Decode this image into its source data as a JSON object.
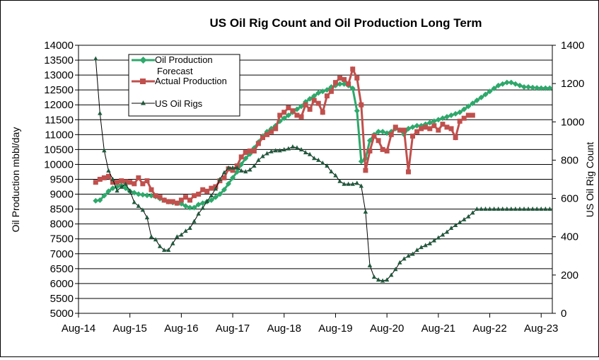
{
  "chart_data": {
    "type": "line",
    "title": "US Oil Rig Count and Oil Production Long Term",
    "ylabel": "Oil Production mbbl/day",
    "y2label": "US Oil Rig Count",
    "ylim": [
      5000,
      14000
    ],
    "y2lim": [
      0,
      1400
    ],
    "y_ticks": [
      "5000",
      "5500",
      "6000",
      "6500",
      "7000",
      "7500",
      "8000",
      "8500",
      "9000",
      "9500",
      "10000",
      "10500",
      "11000",
      "11500",
      "12000",
      "12500",
      "13000",
      "13500",
      "14000"
    ],
    "y2_ticks": [
      "0",
      "200",
      "400",
      "600",
      "800",
      "1000",
      "1200",
      "1400"
    ],
    "x_ticks": [
      "Aug-14",
      "Aug-15",
      "Aug-16",
      "Aug-17",
      "Aug-18",
      "Aug-19",
      "Aug-20",
      "Aug-21",
      "Aug-22",
      "Aug-23"
    ],
    "x_tick_values": [
      2014.583,
      2015.583,
      2016.583,
      2017.583,
      2018.583,
      2019.583,
      2020.583,
      2021.583,
      2022.583,
      2023.583
    ],
    "xlim": [
      2014.583,
      2023.8
    ],
    "grid": "horizontal",
    "legend_position": "top-left",
    "legend": [
      {
        "label": "Oil Production",
        "label2": "Forecast"
      },
      {
        "label": "Actual Production"
      },
      {
        "label": "US Oil Rigs"
      }
    ],
    "colors": {
      "forecast": "#2ea86b",
      "actual": "#c0504d",
      "rigs": "#000000",
      "rig_marker": "#1f5a3c"
    },
    "series": [
      {
        "name": "Oil Production Forecast",
        "axis": "left",
        "x": [
          2014.917,
          2015.0,
          2015.083,
          2015.167,
          2015.25,
          2015.333,
          2015.417,
          2015.5,
          2015.583,
          2015.667,
          2015.75,
          2015.833,
          2015.917,
          2016.0,
          2016.083,
          2016.167,
          2016.25,
          2016.333,
          2016.417,
          2016.5,
          2016.583,
          2016.667,
          2016.75,
          2016.833,
          2016.917,
          2017.0,
          2017.083,
          2017.167,
          2017.25,
          2017.333,
          2017.417,
          2017.5,
          2017.583,
          2017.667,
          2017.75,
          2017.833,
          2017.917,
          2018.0,
          2018.083,
          2018.167,
          2018.25,
          2018.333,
          2018.417,
          2018.5,
          2018.583,
          2018.667,
          2018.75,
          2018.833,
          2018.917,
          2019.0,
          2019.083,
          2019.167,
          2019.25,
          2019.333,
          2019.417,
          2019.5,
          2019.583,
          2019.667,
          2019.75,
          2019.833,
          2019.917,
          2020.0,
          2020.083,
          2020.167,
          2020.25,
          2020.333,
          2020.417,
          2020.5,
          2020.583,
          2020.667,
          2020.75,
          2020.833,
          2020.917,
          2021.0,
          2021.083,
          2021.167,
          2021.25,
          2021.333,
          2021.417,
          2021.5,
          2021.583,
          2021.667,
          2021.75,
          2021.833,
          2021.917,
          2022.0,
          2022.083,
          2022.167,
          2022.25,
          2022.333,
          2022.417,
          2022.5,
          2022.583,
          2022.667,
          2022.75,
          2022.833,
          2022.917,
          2023.0,
          2023.083,
          2023.167,
          2023.25,
          2023.333,
          2023.417,
          2023.5,
          2023.583,
          2023.667,
          2023.75
        ],
        "values": [
          8780,
          8800,
          8950,
          9100,
          9200,
          9250,
          9300,
          9200,
          9100,
          9050,
          9000,
          8980,
          8960,
          8950,
          8920,
          8850,
          8800,
          8750,
          8720,
          8700,
          8680,
          8600,
          8550,
          8550,
          8650,
          8700,
          8750,
          8800,
          8900,
          9000,
          9150,
          9350,
          9550,
          9750,
          10000,
          10200,
          10350,
          10550,
          10750,
          10950,
          11100,
          11200,
          11300,
          11450,
          11550,
          11650,
          11750,
          11850,
          11950,
          12100,
          12200,
          12300,
          12400,
          12450,
          12500,
          12600,
          12650,
          12700,
          12700,
          12650,
          12550,
          11800,
          10100,
          10200,
          10800,
          11000,
          11100,
          11100,
          11050,
          11100,
          11200,
          11150,
          11000,
          11200,
          11250,
          11300,
          11300,
          11350,
          11400,
          11450,
          11500,
          11550,
          11600,
          11650,
          11700,
          11750,
          11850,
          11950,
          12050,
          12150,
          12250,
          12350,
          12450,
          12550,
          12650,
          12700,
          12750,
          12750,
          12700,
          12650,
          12600,
          12600,
          12580,
          12570,
          12560,
          12560,
          12560
        ]
      },
      {
        "name": "Actual Production",
        "axis": "left",
        "x": [
          2014.917,
          2015.0,
          2015.083,
          2015.167,
          2015.25,
          2015.333,
          2015.417,
          2015.5,
          2015.583,
          2015.667,
          2015.75,
          2015.833,
          2015.917,
          2016.0,
          2016.083,
          2016.167,
          2016.25,
          2016.333,
          2016.417,
          2016.5,
          2016.583,
          2016.667,
          2016.75,
          2016.833,
          2016.917,
          2017.0,
          2017.083,
          2017.167,
          2017.25,
          2017.333,
          2017.417,
          2017.5,
          2017.583,
          2017.667,
          2017.75,
          2017.833,
          2017.917,
          2018.0,
          2018.083,
          2018.167,
          2018.25,
          2018.333,
          2018.417,
          2018.5,
          2018.583,
          2018.667,
          2018.75,
          2018.833,
          2018.917,
          2019.0,
          2019.083,
          2019.167,
          2019.25,
          2019.333,
          2019.417,
          2019.5,
          2019.583,
          2019.667,
          2019.75,
          2019.833,
          2019.917,
          2020.0,
          2020.083,
          2020.167,
          2020.25,
          2020.333,
          2020.417,
          2020.5,
          2020.583,
          2020.667,
          2020.75,
          2020.833,
          2020.917,
          2021.0,
          2021.083,
          2021.167,
          2021.25,
          2021.333,
          2021.417,
          2021.5,
          2021.583,
          2021.667,
          2021.75,
          2021.833,
          2021.917,
          2022.0,
          2022.083,
          2022.167,
          2022.25
        ],
        "values": [
          9400,
          9500,
          9550,
          9600,
          9400,
          9400,
          9450,
          9420,
          9400,
          9350,
          9550,
          9350,
          9450,
          9150,
          8950,
          8900,
          8800,
          8750,
          8750,
          8700,
          8800,
          8900,
          8800,
          8950,
          9000,
          9150,
          9100,
          9200,
          9250,
          9450,
          9550,
          9850,
          9800,
          9950,
          10250,
          10400,
          10450,
          10450,
          10700,
          10900,
          11000,
          11100,
          11200,
          11650,
          11750,
          11900,
          11800,
          11650,
          11600,
          12000,
          11850,
          12150,
          12050,
          11750,
          12300,
          12450,
          12750,
          12900,
          12850,
          12700,
          13200,
          12900,
          12000,
          9800,
          10450,
          10950,
          10800,
          10500,
          10450,
          11000,
          11250,
          11150,
          11150,
          9750,
          10950,
          11100,
          11200,
          11250,
          11200,
          11300,
          11150,
          11350,
          11250,
          11200,
          10900,
          11450,
          11550,
          11650,
          11650
        ]
      },
      {
        "name": "US Oil Rigs",
        "axis": "right",
        "x": [
          2014.917,
          2015.0,
          2015.083,
          2015.167,
          2015.25,
          2015.333,
          2015.417,
          2015.5,
          2015.583,
          2015.667,
          2015.75,
          2015.833,
          2015.917,
          2016.0,
          2016.083,
          2016.167,
          2016.25,
          2016.333,
          2016.417,
          2016.5,
          2016.583,
          2016.667,
          2016.75,
          2016.833,
          2016.917,
          2017.0,
          2017.083,
          2017.167,
          2017.25,
          2017.333,
          2017.417,
          2017.5,
          2017.583,
          2017.667,
          2017.75,
          2017.833,
          2017.917,
          2018.0,
          2018.083,
          2018.167,
          2018.25,
          2018.333,
          2018.417,
          2018.5,
          2018.583,
          2018.667,
          2018.75,
          2018.833,
          2018.917,
          2019.0,
          2019.083,
          2019.167,
          2019.25,
          2019.333,
          2019.417,
          2019.5,
          2019.583,
          2019.667,
          2019.75,
          2019.833,
          2019.917,
          2020.0,
          2020.083,
          2020.167,
          2020.25,
          2020.333,
          2020.417,
          2020.5,
          2020.583,
          2020.667,
          2020.75,
          2020.833,
          2020.917,
          2021.0,
          2021.083,
          2021.167,
          2021.25,
          2021.333,
          2021.417,
          2021.5,
          2021.583,
          2021.667,
          2021.75,
          2021.833,
          2021.917,
          2022.0,
          2022.083,
          2022.167,
          2022.25,
          2022.333,
          2022.417,
          2022.5,
          2022.583,
          2022.667,
          2022.75,
          2022.833,
          2022.917,
          2023.0,
          2023.083,
          2023.167,
          2023.25,
          2023.333,
          2023.417,
          2023.5,
          2023.583,
          2023.667,
          2023.75
        ],
        "values": [
          1330,
          1045,
          850,
          745,
          700,
          640,
          660,
          675,
          640,
          580,
          560,
          540,
          500,
          400,
          385,
          350,
          330,
          330,
          365,
          400,
          410,
          430,
          445,
          480,
          520,
          550,
          585,
          615,
          650,
          700,
          735,
          760,
          760,
          760,
          745,
          740,
          750,
          770,
          800,
          820,
          835,
          845,
          850,
          850,
          855,
          860,
          870,
          865,
          855,
          840,
          830,
          810,
          800,
          785,
          770,
          740,
          720,
          690,
          675,
          675,
          675,
          680,
          665,
          530,
          250,
          190,
          175,
          170,
          175,
          200,
          230,
          265,
          285,
          300,
          310,
          330,
          345,
          355,
          365,
          380,
          395,
          410,
          425,
          445,
          460,
          475,
          490,
          505,
          525,
          545,
          545,
          545,
          545,
          545,
          545,
          545,
          545,
          545,
          545,
          545,
          545,
          545,
          545,
          545,
          545,
          545,
          545
        ]
      }
    ]
  }
}
